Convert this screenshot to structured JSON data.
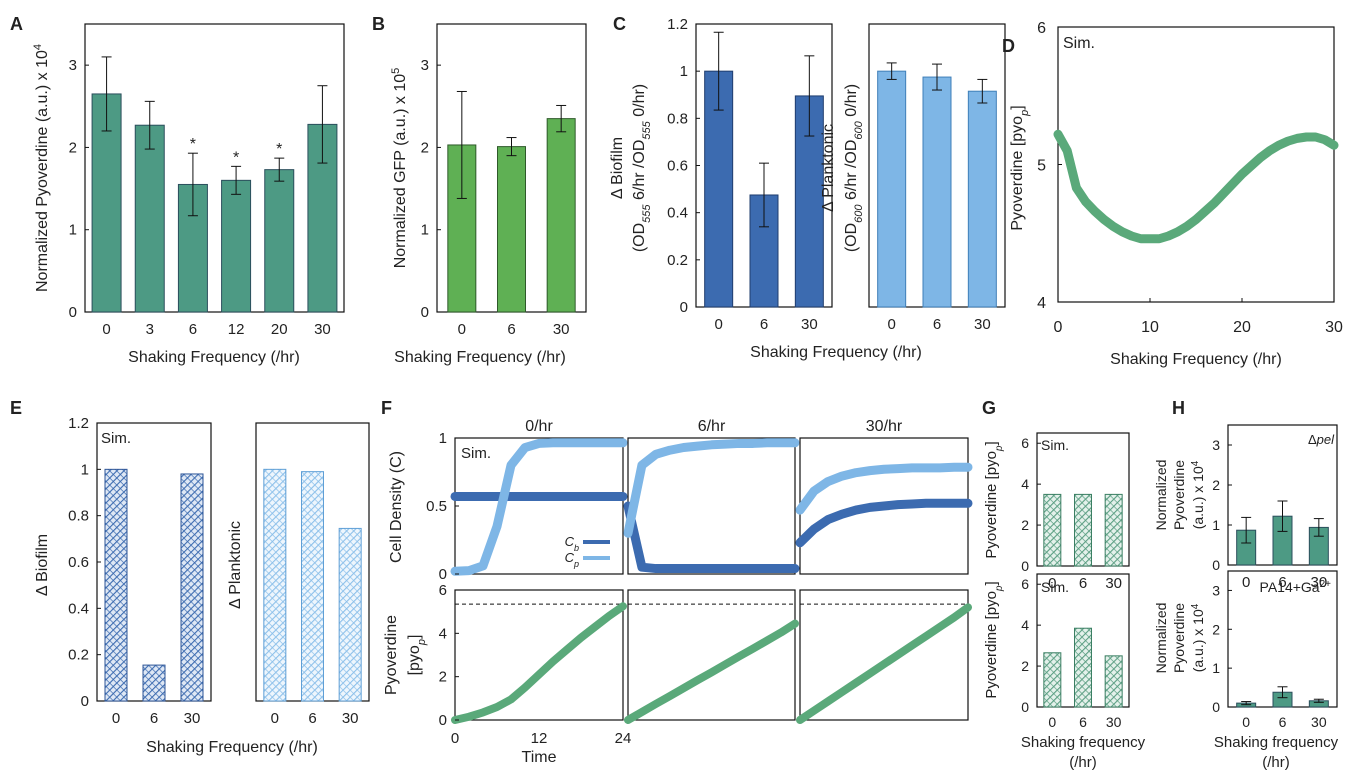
{
  "colors": {
    "teal": "#4d9a84",
    "green": "#5fb054",
    "dark_blue": "#3c6bb0",
    "light_blue": "#7eb6e6",
    "sim_green": "#5aa97a"
  },
  "chart_data": [
    {
      "id": "A",
      "type": "bar",
      "panel_label": "A",
      "categories": [
        "0",
        "3",
        "6",
        "12",
        "20",
        "30"
      ],
      "values": [
        2.65,
        2.27,
        1.55,
        1.6,
        1.73,
        2.28
      ],
      "errors": [
        0.45,
        0.29,
        0.38,
        0.17,
        0.14,
        0.47
      ],
      "significant": [
        false,
        false,
        true,
        true,
        true,
        false
      ],
      "sig_marker": "*",
      "ylabel_parts": {
        "main": "Normalized Pyoverdine (a.u.) x 10",
        "exp": "4"
      },
      "xlabel": "Shaking Frequency (/hr)",
      "ylim": [
        0,
        3.5
      ],
      "yticks": [
        "0",
        "1",
        "2",
        "3"
      ]
    },
    {
      "id": "B",
      "type": "bar",
      "panel_label": "B",
      "categories": [
        "0",
        "6",
        "30"
      ],
      "values": [
        2.03,
        2.01,
        2.35
      ],
      "errors": [
        0.65,
        0.11,
        0.16
      ],
      "ylabel_parts": {
        "main": "Normalized GFP (a.u.) x 10",
        "exp": "5"
      },
      "xlabel": "Shaking Frequency (/hr)",
      "ylim": [
        0,
        3.5
      ],
      "yticks": [
        "0",
        "1",
        "2",
        "3"
      ]
    },
    {
      "id": "C1",
      "type": "bar",
      "panel_label": "C",
      "categories": [
        "0",
        "6",
        "30"
      ],
      "values": [
        1.0,
        0.475,
        0.895
      ],
      "errors": [
        0.165,
        0.135,
        0.17
      ],
      "ylabel_top": "Δ Biofilm",
      "ylabel_bottom": "(OD555 6/hr /OD555 0/hr)",
      "ylim": [
        0,
        1.2
      ],
      "yticks": [
        "0",
        "0.2",
        "0.4",
        "0.6",
        "0.8",
        "1",
        "1.2"
      ]
    },
    {
      "id": "C2",
      "type": "bar",
      "categories": [
        "0",
        "6",
        "30"
      ],
      "values": [
        1.0,
        0.975,
        0.915
      ],
      "errors": [
        0.035,
        0.055,
        0.05
      ],
      "ylabel_top": "Δ Planktonic",
      "ylabel_bottom": "(OD600 6/hr /OD600 0/hr)",
      "ylim": [
        0,
        1.2
      ],
      "shared_xlabel": "Shaking Frequency (/hr)"
    },
    {
      "id": "D",
      "type": "line",
      "panel_label": "D",
      "annotation": "Sim.",
      "x": [
        0,
        1,
        2,
        3,
        4,
        5,
        6,
        7,
        8,
        9,
        10,
        11,
        12,
        13,
        14,
        15,
        16,
        17,
        18,
        19,
        20,
        21,
        22,
        23,
        24,
        25,
        26,
        27,
        28,
        29,
        30
      ],
      "y": [
        5.22,
        5.1,
        4.83,
        4.73,
        4.66,
        4.6,
        4.55,
        4.51,
        4.48,
        4.46,
        4.46,
        4.46,
        4.48,
        4.51,
        4.55,
        4.6,
        4.66,
        4.72,
        4.79,
        4.86,
        4.93,
        4.99,
        5.05,
        5.1,
        5.14,
        5.17,
        5.19,
        5.2,
        5.2,
        5.18,
        5.14
      ],
      "ylabel_main": "Pyoverdine [pyo",
      "ylabel_sub": "p",
      "xlabel": "Shaking Frequency (/hr)",
      "xlim": [
        0,
        30
      ],
      "ylim": [
        4,
        6
      ],
      "xticks": [
        "0",
        "10",
        "20",
        "30"
      ],
      "yticks": [
        "4",
        "5",
        "6"
      ]
    },
    {
      "id": "E1",
      "type": "bar",
      "panel_label": "E",
      "annotation": "Sim.",
      "categories": [
        "0",
        "6",
        "30"
      ],
      "values": [
        1.0,
        0.155,
        0.98
      ],
      "ylabel": "Δ Biofilm",
      "ylim": [
        0,
        1.2
      ],
      "yticks": [
        "0",
        "0.2",
        "0.4",
        "0.6",
        "0.8",
        "1",
        "1.2"
      ]
    },
    {
      "id": "E2",
      "type": "bar",
      "categories": [
        "0",
        "6",
        "30"
      ],
      "values": [
        1.0,
        0.99,
        0.745
      ],
      "ylabel": "Δ Planktonic",
      "ylim": [
        0,
        1.2
      ],
      "shared_xlabel": "Shaking Frequency (/hr)"
    },
    {
      "id": "F",
      "type": "line",
      "panel_label": "F",
      "annotation": "Sim.",
      "columns": [
        "0/hr",
        "6/hr",
        "30/hr"
      ],
      "top": {
        "ylabel": "Cell Density (C)",
        "ylim": [
          0,
          1
        ],
        "yticks": [
          "0",
          "0.5",
          "1"
        ],
        "legend": [
          {
            "main": "C",
            "sub": "b"
          },
          {
            "main": "C",
            "sub": "p"
          }
        ],
        "x": [
          0,
          2,
          4,
          6,
          8,
          10,
          12,
          14,
          16,
          18,
          20,
          22,
          24
        ],
        "series": [
          [
            {
              "name": "Cb",
              "values": [
                0.57,
                0.57,
                0.57,
                0.57,
                0.57,
                0.57,
                0.57,
                0.57,
                0.57,
                0.57,
                0.57,
                0.57,
                0.57
              ]
            },
            {
              "name": "Cp",
              "values": [
                0.02,
                0.025,
                0.06,
                0.35,
                0.8,
                0.93,
                0.96,
                0.965,
                0.965,
                0.965,
                0.965,
                0.965,
                0.965
              ]
            }
          ],
          [
            {
              "name": "Cb",
              "values": [
                0.5,
                0.05,
                0.04,
                0.04,
                0.04,
                0.04,
                0.04,
                0.04,
                0.04,
                0.04,
                0.04,
                0.04,
                0.04
              ]
            },
            {
              "name": "Cp",
              "values": [
                0.3,
                0.8,
                0.88,
                0.91,
                0.93,
                0.94,
                0.95,
                0.955,
                0.96,
                0.96,
                0.965,
                0.965,
                0.965
              ]
            }
          ],
          [
            {
              "name": "Cb",
              "values": [
                0.23,
                0.33,
                0.4,
                0.44,
                0.47,
                0.49,
                0.5,
                0.51,
                0.515,
                0.52,
                0.52,
                0.52,
                0.52
              ]
            },
            {
              "name": "Cp",
              "values": [
                0.47,
                0.61,
                0.68,
                0.72,
                0.745,
                0.76,
                0.77,
                0.775,
                0.78,
                0.78,
                0.78,
                0.785,
                0.785
              ]
            }
          ]
        ]
      },
      "bottom": {
        "ylabel_main": "Pyoverdine",
        "ylabel_line2": "[pyo",
        "ylabel_sub": "p",
        "ylim": [
          0,
          6
        ],
        "yticks": [
          "0",
          "2",
          "4",
          "6"
        ],
        "dashed_level": 5.35,
        "x": [
          0,
          2,
          4,
          6,
          8,
          10,
          12,
          14,
          16,
          18,
          20,
          22,
          24
        ],
        "series": [
          [
            0,
            0.15,
            0.35,
            0.6,
            0.95,
            1.5,
            2.1,
            2.7,
            3.25,
            3.8,
            4.3,
            4.8,
            5.25
          ],
          [
            0,
            0.37,
            0.74,
            1.1,
            1.47,
            1.84,
            2.2,
            2.57,
            2.94,
            3.3,
            3.67,
            4.04,
            4.45
          ],
          [
            0,
            0.43,
            0.86,
            1.29,
            1.72,
            2.15,
            2.58,
            3.01,
            3.44,
            3.87,
            4.3,
            4.73,
            5.2
          ]
        ],
        "xticks": [
          "0",
          "12",
          "24"
        ],
        "xlabel": "Time"
      }
    },
    {
      "id": "G1",
      "type": "bar",
      "panel_label": "G",
      "annotation": "Sim.",
      "categories": [
        "0",
        "6",
        "30"
      ],
      "values": [
        3.5,
        3.5,
        3.5
      ],
      "ylabel_main": "Pyoverdine [pyo",
      "ylabel_sub": "p",
      "ylim": [
        0,
        6.5
      ],
      "yticks": [
        "0",
        "2",
        "4",
        "6"
      ]
    },
    {
      "id": "G2",
      "type": "bar",
      "annotation": "Sim.",
      "categories": [
        "0",
        "6",
        "30"
      ],
      "values": [
        2.65,
        3.85,
        2.5
      ],
      "ylabel_main": "Pyoverdine [pyo",
      "ylabel_sub": "p",
      "ylim": [
        0,
        6.5
      ],
      "yticks": [
        "0",
        "2",
        "4",
        "6"
      ],
      "xlabel_line1": "Shaking frequency",
      "xlabel_line2": "(/hr)"
    },
    {
      "id": "H1",
      "type": "bar",
      "panel_label": "H",
      "annotation": "Δpel",
      "categories": [
        "0",
        "6",
        "30"
      ],
      "values": [
        0.87,
        1.22,
        0.94
      ],
      "errors": [
        0.32,
        0.38,
        0.22
      ],
      "ylabel_line1": "Normalized",
      "ylabel_line2_parts": {
        "main": "Pyoverdine",
        "exp": ""
      },
      "ylabel_line3_parts": {
        "main": "(a.u.) x 10",
        "exp": "4"
      },
      "ylim": [
        0,
        3.5
      ],
      "yticks": [
        "0",
        "1",
        "2",
        "3"
      ]
    },
    {
      "id": "H2",
      "type": "bar",
      "annotation_parts": {
        "main": "PA14+Ga",
        "exp": "2+"
      },
      "categories": [
        "0",
        "6",
        "30"
      ],
      "values": [
        0.1,
        0.38,
        0.16
      ],
      "errors": [
        0.04,
        0.14,
        0.04
      ],
      "ylabel_line1": "Normalized",
      "ylabel_line2_parts": {
        "main": "Pyoverdine",
        "exp": ""
      },
      "ylabel_line3_parts": {
        "main": "(a.u.) x 10",
        "exp": "4"
      },
      "ylim": [
        0,
        3.5
      ],
      "yticks": [
        "0",
        "1",
        "2",
        "3"
      ],
      "xlabel_line1": "Shaking frequency",
      "xlabel_line2": "(/hr)"
    }
  ]
}
